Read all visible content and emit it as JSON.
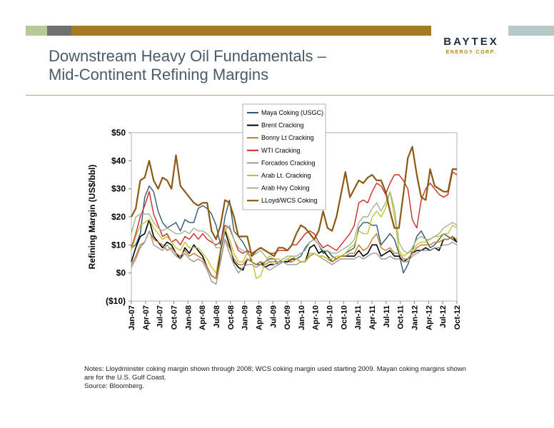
{
  "header": {
    "logo_name": "BAYTEX",
    "logo_subtitle": "ENERGY CORP.",
    "colors": [
      "#b6c99a",
      "#707070",
      "#a57a24"
    ]
  },
  "title": {
    "line1": "Downstream Heavy Oil Fundamentals –",
    "line2": "Mid-Continent Refining Margins"
  },
  "notes": {
    "line1": "Notes: Lloydminster coking margin shown through 2008; WCS coking margin used starting 2009.  Mayan coking margins shown",
    "line2": "are for the U.S. Gulf Coast.",
    "line3": "Source: Bloomberg."
  },
  "chart_data": {
    "type": "line",
    "title": "",
    "xlabel": "",
    "ylabel": "Refining Margin (US$/bbl)",
    "ylim": [
      -10,
      50
    ],
    "yticks": [
      -10,
      0,
      10,
      20,
      30,
      40,
      50
    ],
    "ytick_labels": [
      "($10)",
      "$0",
      "$10",
      "$20",
      "$30",
      "$40",
      "$50"
    ],
    "grid": false,
    "legend_position": "top-center",
    "x_tick_labels": [
      "Jan-07",
      "Apr-07",
      "Jul-07",
      "Oct-07",
      "Jan-08",
      "Apr-08",
      "Jul-08",
      "Oct-08",
      "Jan-09",
      "Apr-09",
      "Jul-09",
      "Oct-09",
      "Jan-10",
      "Apr-10",
      "Jul-10",
      "Oct-10",
      "Jan-11",
      "Apr-11",
      "Jul-11",
      "Oct-11",
      "Jan-12",
      "Apr-12",
      "Jul-12",
      "Oct-12"
    ],
    "x_start": "Jan-07",
    "x_end": "Oct-12",
    "series": [
      {
        "name": "Maya Coking (USGC)",
        "color": "#2e5a6f",
        "width": 1.4,
        "values": [
          9,
          10,
          14,
          27,
          31,
          29,
          22,
          18,
          16,
          17,
          18,
          15,
          19,
          18,
          18,
          23,
          24,
          23,
          21,
          17,
          10,
          20,
          26,
          15,
          13,
          11,
          8,
          4,
          3,
          3,
          4,
          5,
          5,
          3,
          4,
          4,
          4,
          5,
          6,
          9,
          11,
          12,
          10,
          7,
          8,
          6,
          5,
          6,
          7,
          8,
          9,
          16,
          18,
          18,
          17,
          17,
          10,
          12,
          14,
          12,
          7,
          0,
          3,
          8,
          13,
          15,
          12,
          9,
          10,
          12,
          14,
          13,
          12,
          11
        ]
      },
      {
        "name": "Brent Cracking",
        "color": "#000000",
        "width": 1.6,
        "values": [
          4,
          9,
          13,
          14,
          19,
          13,
          11,
          9,
          11,
          10,
          7,
          5,
          9,
          7,
          10,
          8,
          6,
          2,
          -1,
          -2,
          8,
          15,
          10,
          4,
          2,
          1,
          5,
          4,
          3,
          4,
          2,
          3,
          3,
          4,
          4,
          4,
          5,
          5,
          4,
          4,
          9,
          10,
          7,
          8,
          6,
          4,
          5,
          6,
          6,
          6,
          6,
          8,
          6,
          7,
          10,
          10,
          6,
          7,
          8,
          6,
          6,
          4,
          5,
          7,
          8,
          8,
          9,
          8,
          9,
          8,
          12,
          12,
          13,
          11
        ]
      },
      {
        "name": "Bonny Lt Cracking",
        "color": "#c47a28",
        "width": 1.4,
        "values": [
          3,
          6,
          10,
          11,
          15,
          12,
          11,
          10,
          8,
          9,
          7,
          6,
          8,
          6,
          7,
          6,
          5,
          2,
          -1,
          -2,
          5,
          12,
          9,
          5,
          3,
          3,
          5,
          4,
          3,
          4,
          3,
          4,
          4,
          4,
          4,
          5,
          4,
          5,
          4,
          4,
          6,
          7,
          6,
          6,
          5,
          4,
          5,
          6,
          6,
          7,
          7,
          10,
          8,
          9,
          12,
          14,
          9,
          8,
          9,
          7,
          7,
          5,
          5,
          7,
          9,
          10,
          10,
          10,
          11,
          11,
          12,
          12,
          13,
          12
        ]
      },
      {
        "name": "WTI Cracking",
        "color": "#cc2b27",
        "width": 1.4,
        "values": [
          9,
          14,
          20,
          24,
          29,
          21,
          17,
          13,
          14,
          11,
          12,
          10,
          13,
          12,
          14,
          12,
          14,
          12,
          11,
          10,
          11,
          17,
          16,
          12,
          8,
          7,
          8,
          7,
          8,
          9,
          8,
          7,
          7,
          8,
          8,
          8,
          10,
          10,
          12,
          14,
          15,
          14,
          11,
          9,
          10,
          9,
          8,
          10,
          12,
          14,
          17,
          25,
          26,
          25,
          29,
          32,
          31,
          28,
          32,
          35,
          35,
          33,
          30,
          19,
          16,
          26,
          30,
          32,
          30,
          28,
          27,
          28,
          36,
          35
        ]
      },
      {
        "name": "Forcados Cracking",
        "color": "#9a9a9a",
        "width": 1.4,
        "values": [
          2,
          5,
          9,
          11,
          15,
          10,
          9,
          8,
          10,
          8,
          6,
          5,
          7,
          5,
          4,
          5,
          4,
          1,
          -3,
          -4,
          4,
          12,
          7,
          3,
          0,
          2,
          3,
          3,
          2,
          3,
          2,
          1,
          2,
          3,
          4,
          3,
          3,
          3,
          4,
          4,
          7,
          7,
          6,
          5,
          4,
          3,
          4,
          5,
          5,
          5,
          5,
          6,
          5,
          6,
          7,
          7,
          5,
          5,
          6,
          5,
          5,
          4,
          4,
          6,
          7,
          8,
          8,
          8,
          9,
          9,
          10,
          10,
          11,
          10
        ]
      },
      {
        "name": "Arab Lt. Cracking",
        "color": "#c4c430",
        "width": 1.4,
        "values": [
          8,
          13,
          17,
          18,
          19,
          16,
          14,
          12,
          13,
          11,
          9,
          8,
          11,
          9,
          9,
          9,
          7,
          5,
          2,
          0,
          9,
          16,
          12,
          7,
          4,
          4,
          7,
          5,
          -2,
          -1,
          4,
          6,
          5,
          5,
          4,
          5,
          6,
          5,
          4,
          4,
          7,
          7,
          6,
          6,
          5,
          5,
          6,
          6,
          7,
          9,
          10,
          15,
          14,
          14,
          20,
          22,
          20,
          23,
          29,
          20,
          8,
          6,
          7,
          8,
          10,
          11,
          11,
          12,
          13,
          13,
          14,
          14,
          17,
          16
        ]
      },
      {
        "name": "Arab Hvy Coking",
        "color": "#9fb68a",
        "width": 1.4,
        "values": [
          14,
          20,
          21,
          21,
          21,
          18,
          16,
          15,
          16,
          15,
          14,
          14,
          15,
          14,
          16,
          15,
          15,
          14,
          12,
          9,
          9,
          15,
          17,
          12,
          9,
          8,
          7,
          6,
          7,
          8,
          6,
          4,
          3,
          4,
          5,
          6,
          6,
          6,
          7,
          8,
          11,
          12,
          10,
          8,
          8,
          7,
          7,
          8,
          9,
          10,
          12,
          18,
          20,
          20,
          23,
          25,
          22,
          25,
          29,
          23,
          11,
          8,
          7,
          9,
          12,
          13,
          12,
          12,
          13,
          14,
          16,
          17,
          18,
          17
        ]
      },
      {
        "name": "LLoyd/WCS Coking",
        "color": "#8c5a12",
        "width": 2.2,
        "values": [
          20,
          23,
          33,
          34,
          40,
          33,
          30,
          34,
          33,
          30,
          42,
          31,
          29,
          27,
          25,
          24,
          25,
          25,
          15,
          12,
          17,
          26,
          25,
          20,
          13,
          13,
          13,
          6,
          8,
          9,
          8,
          7,
          6,
          9,
          9,
          8,
          10,
          14,
          17,
          16,
          14,
          12,
          15,
          22,
          16,
          15,
          20,
          28,
          36,
          27,
          30,
          33,
          32,
          34,
          35,
          33,
          33,
          29,
          22,
          16,
          16,
          28,
          41,
          45,
          35,
          27,
          26,
          37,
          31,
          30,
          29,
          29,
          37,
          37
        ]
      }
    ]
  }
}
